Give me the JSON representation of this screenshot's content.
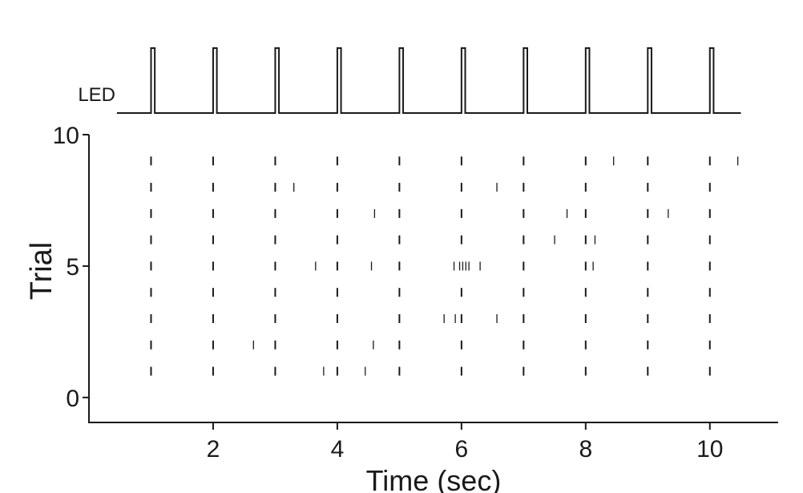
{
  "chart_data": {
    "type": "raster",
    "stimulus": {
      "label": "LED",
      "pulse_onsets": [
        1,
        2,
        3,
        4,
        5,
        6,
        7,
        8,
        9,
        10
      ],
      "pulse_width": 0.06,
      "x_range": [
        0.45,
        10.5
      ]
    },
    "xlabel": "Time (sec)",
    "ylabel": "Trial",
    "xlim": [
      0,
      11.1
    ],
    "ylim": [
      -0.95,
      10
    ],
    "xticks": [
      2,
      4,
      6,
      8,
      10
    ],
    "yticks": [
      0,
      5,
      10
    ],
    "grid": false,
    "trials": [
      {
        "trial": 9,
        "spikes": [
          1.0,
          2.0,
          3.0,
          4.0,
          5.0,
          6.0,
          7.0,
          8.0,
          8.45,
          9.0,
          10.0,
          10.45
        ]
      },
      {
        "trial": 8,
        "spikes": [
          1.0,
          2.0,
          3.0,
          3.3,
          4.0,
          5.0,
          6.0,
          6.57,
          7.0,
          8.0,
          9.0,
          10.0
        ]
      },
      {
        "trial": 7,
        "spikes": [
          1.0,
          2.0,
          3.0,
          4.0,
          4.6,
          5.0,
          6.0,
          7.0,
          7.7,
          8.0,
          9.0,
          9.33,
          10.0
        ]
      },
      {
        "trial": 6,
        "spikes": [
          1.0,
          2.0,
          3.0,
          4.0,
          5.0,
          6.0,
          7.0,
          7.5,
          8.0,
          8.15,
          9.0,
          10.0
        ]
      },
      {
        "trial": 5,
        "spikes": [
          1.0,
          2.0,
          3.0,
          3.65,
          4.0,
          4.55,
          5.0,
          5.88,
          5.97,
          6.02,
          6.07,
          6.12,
          6.3,
          7.0,
          8.0,
          8.12,
          9.0,
          10.0
        ]
      },
      {
        "trial": 4,
        "spikes": [
          1.0,
          2.0,
          3.0,
          4.0,
          5.0,
          6.0,
          7.0,
          8.0,
          9.0,
          10.0
        ]
      },
      {
        "trial": 3,
        "spikes": [
          1.0,
          2.0,
          3.0,
          4.0,
          5.0,
          5.72,
          5.9,
          6.0,
          6.57,
          7.0,
          8.0,
          9.0,
          10.0
        ]
      },
      {
        "trial": 2,
        "spikes": [
          1.0,
          2.0,
          2.65,
          3.0,
          4.0,
          4.58,
          5.0,
          6.0,
          7.0,
          8.0,
          9.0,
          10.0
        ]
      },
      {
        "trial": 1,
        "spikes": [
          1.0,
          2.0,
          3.0,
          3.78,
          4.0,
          4.45,
          5.0,
          6.0,
          7.0,
          8.0,
          9.0,
          10.0
        ]
      }
    ]
  }
}
